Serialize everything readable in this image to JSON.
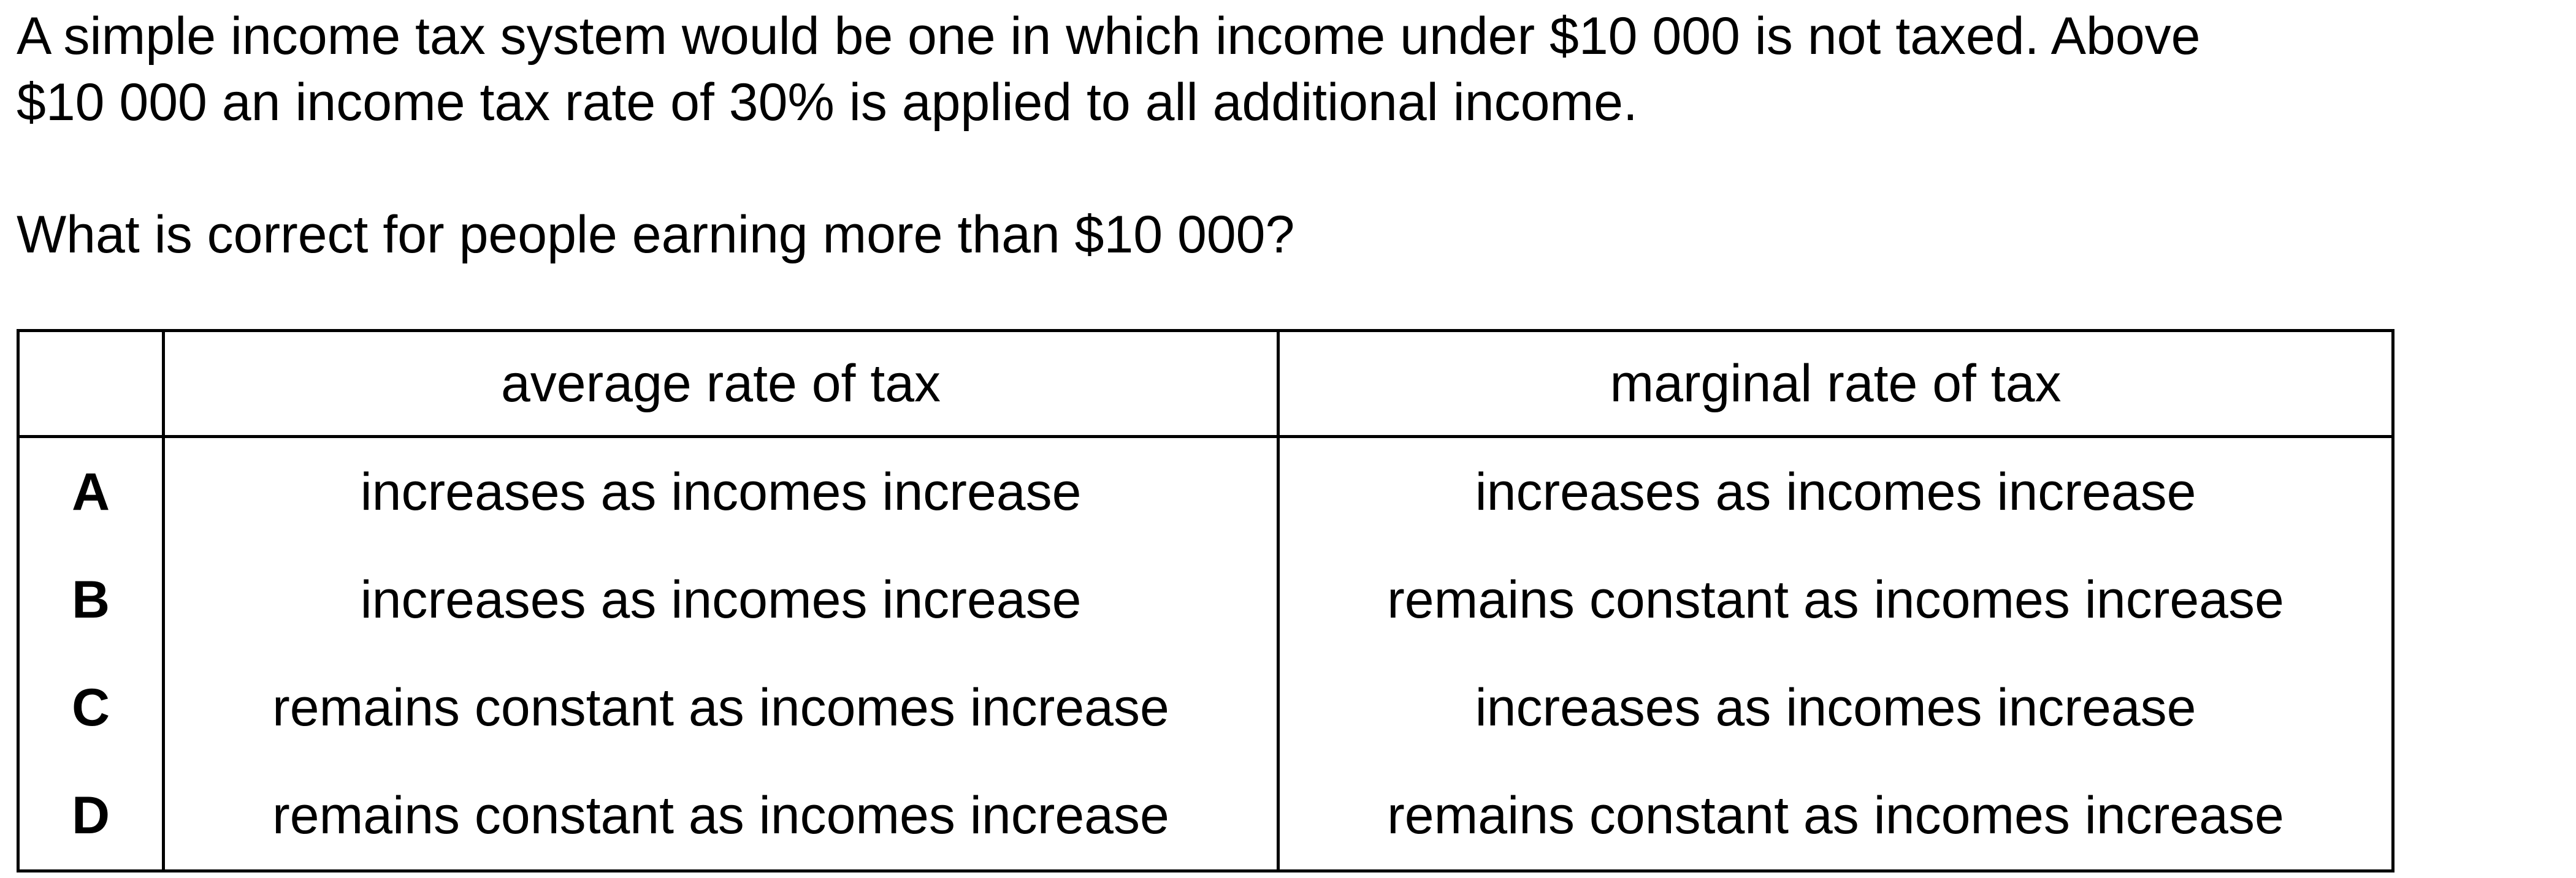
{
  "question": {
    "stem_line1": "A simple income tax system would be one in which income under $10 000 is not taxed. Above",
    "stem_line2": "$10 000 an income tax rate of 30% is applied to all additional income.",
    "prompt": "What is correct for people earning more than $10 000?"
  },
  "table": {
    "headers": [
      "",
      "average rate of tax",
      "marginal rate of tax"
    ],
    "rows": [
      {
        "letter": "A",
        "average": "increases as incomes increase",
        "marginal": "increases as incomes increase"
      },
      {
        "letter": "B",
        "average": "increases as incomes increase",
        "marginal": "remains constant as incomes increase"
      },
      {
        "letter": "C",
        "average": "remains constant as incomes increase",
        "marginal": "increases as incomes increase"
      },
      {
        "letter": "D",
        "average": "remains constant as incomes increase",
        "marginal": "remains constant as incomes increase"
      }
    ]
  }
}
